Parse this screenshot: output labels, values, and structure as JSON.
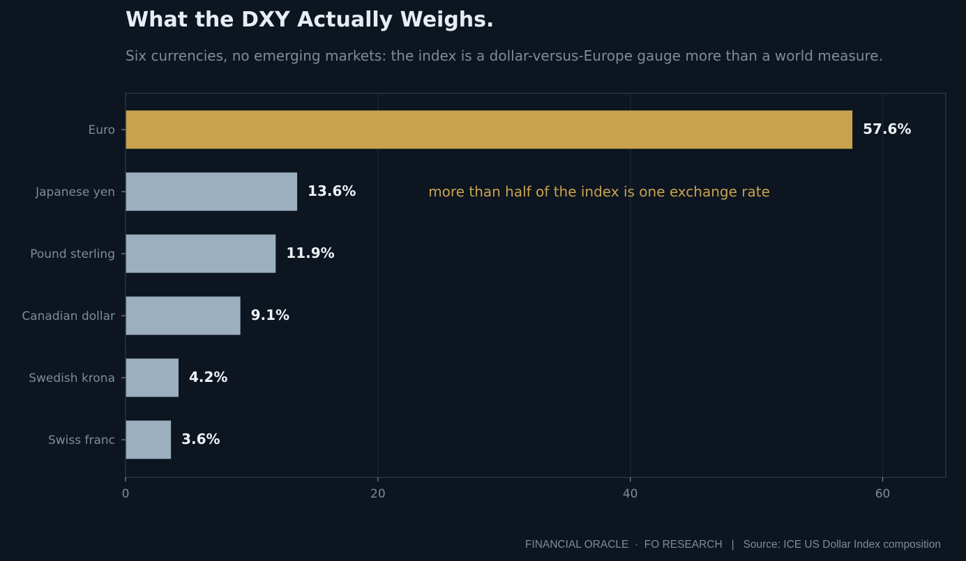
{
  "colors": {
    "background": "#0c1520",
    "highlight": "#c9a24e",
    "bar": "#9bafbe",
    "grid": "#1b2a3a",
    "frame": "#253649"
  },
  "chart_data": {
    "type": "bar",
    "orientation": "horizontal",
    "title": "What the DXY Actually Weighs.",
    "subtitle": "Six currencies, no emerging markets: the index is a dollar-versus-Europe gauge more than a world measure.",
    "categories": [
      "Euro",
      "Japanese yen",
      "Pound sterling",
      "Canadian dollar",
      "Swedish krona",
      "Swiss franc"
    ],
    "values": [
      57.6,
      13.6,
      11.9,
      9.1,
      4.2,
      3.6
    ],
    "value_labels": [
      "57.6%",
      "13.6%",
      "11.9%",
      "9.1%",
      "4.2%",
      "3.6%"
    ],
    "highlight_index": 0,
    "xlim": [
      0,
      65
    ],
    "xticks": [
      0,
      20,
      40,
      60
    ],
    "xtick_labels": [
      "0",
      "20",
      "40",
      "60"
    ],
    "xlabel": "",
    "ylabel": "",
    "grid": "vertical",
    "annotation": {
      "text": "more than half of the index is one exchange rate",
      "x": 24,
      "category": "Japanese yen"
    },
    "footer": "FINANCIAL ORACLE  ·  FO RESEARCH   |   Source: ICE US Dollar Index composition"
  }
}
